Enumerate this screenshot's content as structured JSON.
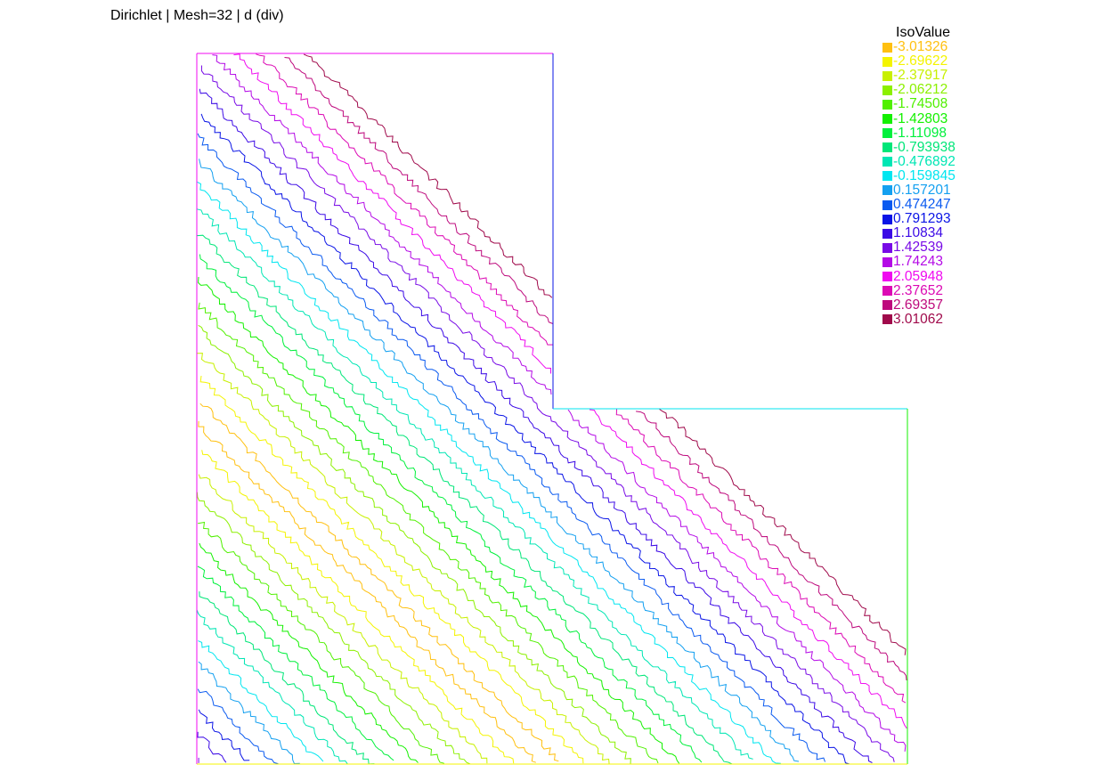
{
  "title": "Dirichlet | Mesh=32 | d (div)",
  "chart_data": {
    "type": "contour",
    "title": "Dirichlet | Mesh=32 | d (div)",
    "legend_title": "IsoValue",
    "legend_position": "top-right",
    "domain_shape": "L-shaped (unit square minus upper-right quarter)",
    "grid": false,
    "field_trend": "contours run diagonally from upper-left to lower-right; value decreases toward the anti-diagonal band and increases toward the lower-left and upper-right corners",
    "levels": [
      {
        "value": "-3.01326",
        "color": "#ffc010"
      },
      {
        "value": "-2.69622",
        "color": "#f4f400"
      },
      {
        "value": "-2.37917",
        "color": "#c8f000"
      },
      {
        "value": "-2.06212",
        "color": "#8cf000"
      },
      {
        "value": "-1.74508",
        "color": "#50f000"
      },
      {
        "value": "-1.42803",
        "color": "#14f000"
      },
      {
        "value": "-1.11098",
        "color": "#00f03c"
      },
      {
        "value": "-0.793938",
        "color": "#00e678"
      },
      {
        "value": "-0.476892",
        "color": "#00e6b4"
      },
      {
        "value": "-0.159845",
        "color": "#00e6f0"
      },
      {
        "value": "0.157201",
        "color": "#14a0f0"
      },
      {
        "value": "0.474247",
        "color": "#0a5af0"
      },
      {
        "value": "0.791293",
        "color": "#0a14e6"
      },
      {
        "value": "1.10834",
        "color": "#3c0ae6"
      },
      {
        "value": "1.42539",
        "color": "#780ae6"
      },
      {
        "value": "1.74243",
        "color": "#b40ae6"
      },
      {
        "value": "2.05948",
        "color": "#f00af0"
      },
      {
        "value": "2.37652",
        "color": "#dc0ab4"
      },
      {
        "value": "2.69357",
        "color": "#be0a7d"
      },
      {
        "value": "3.01062",
        "color": "#a00a4b"
      }
    ]
  }
}
